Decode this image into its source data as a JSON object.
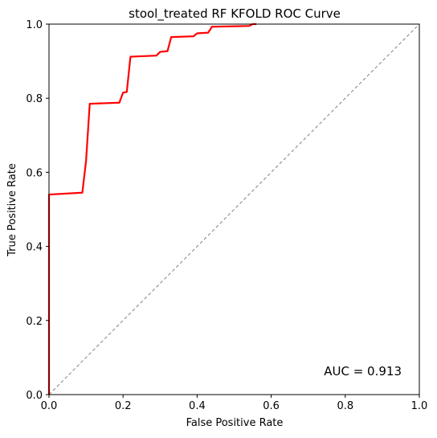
{
  "chart_data": {
    "type": "line",
    "title": "stool_treated RF KFOLD ROC Curve",
    "xlabel": "False Positive Rate",
    "ylabel": "True Positive Rate",
    "xlim": [
      0.0,
      1.0
    ],
    "ylim": [
      0.0,
      1.0
    ],
    "x_ticks": [
      "0.0",
      "0.2",
      "0.4",
      "0.6",
      "0.8",
      "1.0"
    ],
    "y_ticks": [
      "0.0",
      "0.2",
      "0.4",
      "0.6",
      "0.8",
      "1.0"
    ],
    "grid": false,
    "annotation": "AUC = 0.913",
    "series": [
      {
        "color": "#ff0000",
        "style": "solid",
        "x": [
          0.0,
          0.0,
          0.09,
          0.1,
          0.11,
          0.19,
          0.2,
          0.21,
          0.22,
          0.29,
          0.3,
          0.32,
          0.33,
          0.39,
          0.4,
          0.43,
          0.44,
          0.54,
          0.55,
          0.56
        ],
        "y": [
          0.0,
          0.54,
          0.545,
          0.63,
          0.785,
          0.788,
          0.815,
          0.817,
          0.912,
          0.915,
          0.925,
          0.927,
          0.965,
          0.967,
          0.975,
          0.977,
          0.993,
          0.995,
          1.0,
          1.0
        ]
      },
      {
        "color": "#808080",
        "style": "dashed",
        "x": [
          0.0,
          1.0
        ],
        "y": [
          0.0,
          1.0
        ]
      }
    ]
  }
}
